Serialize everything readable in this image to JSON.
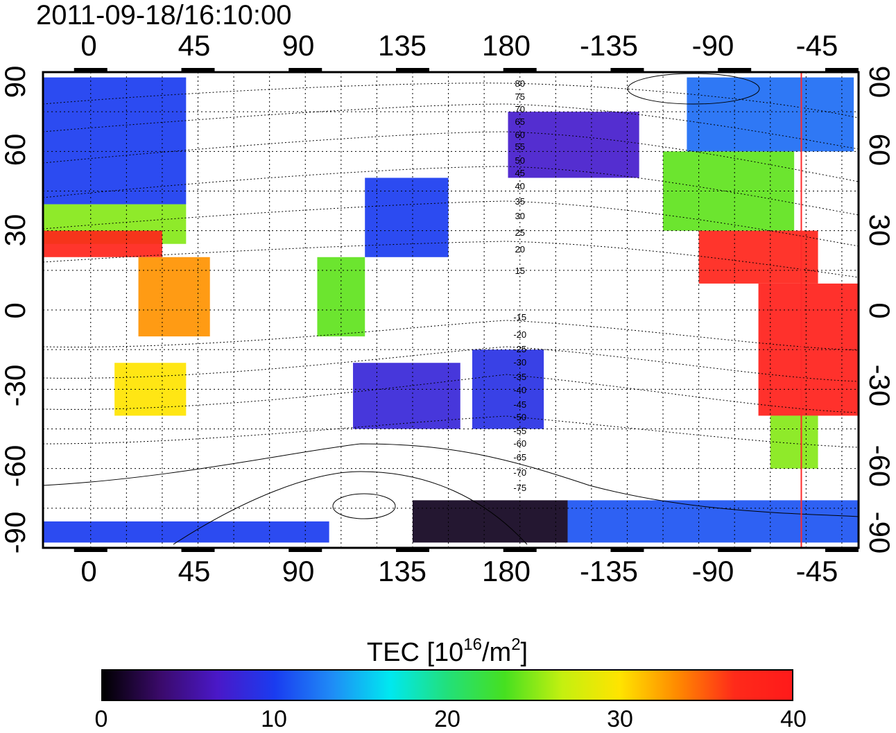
{
  "title": "2011-09-18/16:10:00",
  "map": {
    "lon_ticks": [
      "0",
      "45",
      "90",
      "135",
      "180",
      "-135",
      "-90",
      "-45"
    ],
    "lat_ticks": [
      "90",
      "60",
      "30",
      "0",
      "-30",
      "-60",
      "-90"
    ],
    "lon_range": [
      -20,
      322
    ],
    "lat_range": [
      -90,
      90
    ],
    "grid": true,
    "meridian_marker_lon": 298,
    "meridian_marker_color": "#ff2a2a",
    "contour_labels_north": [
      "80",
      "75",
      "70",
      "65",
      "60",
      "55",
      "50",
      "45",
      "40",
      "35",
      "30",
      "25",
      "20",
      "15"
    ],
    "contour_labels_south": [
      "-15",
      "-20",
      "-25",
      "-30",
      "-35",
      "-40",
      "-45",
      "-50",
      "-55",
      "-60",
      "-65",
      "-70",
      "-75"
    ]
  },
  "colorbar": {
    "label_main": "TEC  [10",
    "label_sup1": "16",
    "label_mid": "/m",
    "label_sup2": "2",
    "label_end": "]",
    "ticks": [
      "0",
      "10",
      "20",
      "30",
      "40"
    ],
    "range": [
      0,
      40
    ],
    "colors": [
      "#000000",
      "#3a0a6a",
      "#4a18c8",
      "#1a3cf0",
      "#1f8cf6",
      "#00e8f0",
      "#22e07a",
      "#46e020",
      "#c4f010",
      "#ffe400",
      "#ff8a00",
      "#ff2a1a",
      "#ff1a1a"
    ]
  },
  "chart_data": {
    "type": "heatmap",
    "title": "2011-09-18/16:10:00",
    "x_ticks": [
      "0",
      "45",
      "90",
      "135",
      "180",
      "-135",
      "-90",
      "-45"
    ],
    "y_ticks": [
      "90",
      "60",
      "30",
      "0",
      "-30",
      "-60",
      "-90"
    ],
    "colorbar_label": "TEC [10^16/m^2]",
    "colorbar_range": [
      0,
      40
    ],
    "regions": [
      {
        "lon_min": -20,
        "lon_max": 40,
        "lat_min": 40,
        "lat_max": 88,
        "tec": 10
      },
      {
        "lon_min": -20,
        "lon_max": 40,
        "lat_min": 25,
        "lat_max": 40,
        "tec": 25
      },
      {
        "lon_min": -20,
        "lon_max": 30,
        "lat_min": 20,
        "lat_max": 30,
        "tec": 38
      },
      {
        "lon_min": 10,
        "lon_max": 40,
        "lat_min": -40,
        "lat_max": -20,
        "tec": 30
      },
      {
        "lon_min": 20,
        "lon_max": 50,
        "lat_min": -10,
        "lat_max": 20,
        "tec": 33
      },
      {
        "lon_min": 95,
        "lon_max": 115,
        "lat_min": -10,
        "lat_max": 20,
        "tec": 24
      },
      {
        "lon_min": 115,
        "lon_max": 150,
        "lat_min": 20,
        "lat_max": 50,
        "tec": 10
      },
      {
        "lon_min": 110,
        "lon_max": 155,
        "lat_min": -45,
        "lat_max": -20,
        "tec": 8
      },
      {
        "lon_min": 160,
        "lon_max": 190,
        "lat_min": -45,
        "lat_max": -15,
        "tec": 9
      },
      {
        "lon_min": 175,
        "lon_max": 230,
        "lat_min": 50,
        "lat_max": 75,
        "tec": 7
      },
      {
        "lon_min": 240,
        "lon_max": 295,
        "lat_min": 30,
        "lat_max": 60,
        "tec": 24
      },
      {
        "lon_min": 250,
        "lon_max": 320,
        "lat_min": 60,
        "lat_max": 88,
        "tec": 12
      },
      {
        "lon_min": 255,
        "lon_max": 305,
        "lat_min": 10,
        "lat_max": 30,
        "tec": 38
      },
      {
        "lon_min": 280,
        "lon_max": 325,
        "lat_min": -40,
        "lat_max": 10,
        "tec": 39
      },
      {
        "lon_min": 285,
        "lon_max": 305,
        "lat_min": -60,
        "lat_max": -40,
        "tec": 25
      },
      {
        "lon_min": 135,
        "lon_max": 200,
        "lat_min": -88,
        "lat_max": -72,
        "tec": 1
      },
      {
        "lon_min": 200,
        "lon_max": 322,
        "lat_min": -88,
        "lat_max": -72,
        "tec": 11
      },
      {
        "lon_min": -20,
        "lon_max": 100,
        "lat_min": -88,
        "lat_max": -80,
        "tec": 10
      }
    ]
  }
}
